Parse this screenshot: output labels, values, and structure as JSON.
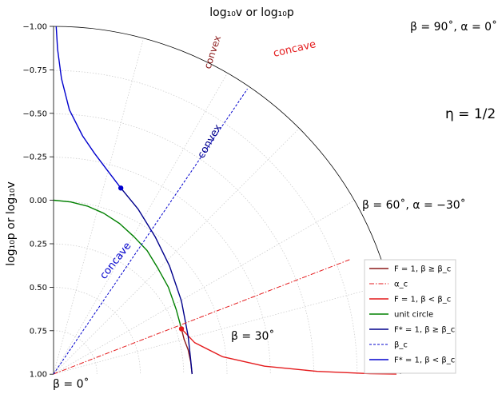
{
  "chart_data": {
    "type": "line",
    "title": "log₁₀v  or  log₁₀p",
    "ylabel": "log₁₀p  or  log₁₀v",
    "yticks": [
      "−1.00",
      "−0.75",
      "−0.50",
      "−0.25",
      "0.00",
      "0.25",
      "0.50",
      "0.75",
      "1.00"
    ],
    "ylim": [
      -1.0,
      1.0
    ],
    "eta_label": "η = 1/2",
    "angle_labels": [
      {
        "beta_deg": 0,
        "text": "β = 0˚"
      },
      {
        "beta_deg": 30,
        "text": "β = 30˚"
      },
      {
        "beta_deg": 60,
        "text": "β = 60˚, α = −30˚"
      },
      {
        "beta_deg": 90,
        "text": "β = 90˚, α = 0˚"
      }
    ],
    "curve_labels": [
      {
        "text": "convex",
        "color": "#8b1a1a"
      },
      {
        "text": "concave",
        "color": "#e41a1c"
      },
      {
        "text": "convex",
        "color": "#00008b"
      },
      {
        "text": "concave",
        "color": "#0000cd"
      }
    ],
    "legend": [
      {
        "label": "F = 1,  β ≥ β_c",
        "color": "#8b1a1a",
        "style": "solid"
      },
      {
        "label": "α_c",
        "color": "#e41a1c",
        "style": "dashdot"
      },
      {
        "label": "F = 1,  β < β_c",
        "color": "#e41a1c",
        "style": "solid"
      },
      {
        "label": "unit circle",
        "color": "#008000",
        "style": "solid"
      },
      {
        "label": "F* = 1,  β ≥ β_c",
        "color": "#00008b",
        "style": "solid"
      },
      {
        "label": "β_c",
        "color": "#0000cd",
        "style": "dashed"
      },
      {
        "label": "F* = 1,  β < β_c",
        "color": "#0000cd",
        "style": "solid"
      }
    ],
    "series": [
      {
        "key": "unit_circle",
        "color": "#008000",
        "points": [
          [
            0,
            0
          ],
          [
            0.13,
            0.01
          ],
          [
            0.26,
            0.035
          ],
          [
            0.38,
            0.075
          ],
          [
            0.5,
            0.134
          ],
          [
            0.61,
            0.21
          ],
          [
            0.71,
            0.29
          ],
          [
            0.79,
            0.39
          ],
          [
            0.87,
            0.5
          ],
          [
            0.93,
            0.63
          ],
          [
            0.97,
            0.74
          ]
        ]
      },
      {
        "key": "F1_beta_ge",
        "color": "#8b1a1a",
        "points": [
          [
            0.97,
            0.74
          ],
          [
            0.99,
            0.8
          ],
          [
            1.02,
            0.86
          ],
          [
            1.04,
            0.93
          ],
          [
            1.05,
            1.0
          ]
        ]
      },
      {
        "key": "F1_beta_lt",
        "color": "#e41a1c",
        "points": [
          [
            0.97,
            0.74
          ],
          [
            1.07,
            0.82
          ],
          [
            1.28,
            0.9
          ],
          [
            1.6,
            0.955
          ],
          [
            2.0,
            0.985
          ],
          [
            2.4,
            0.998
          ],
          [
            2.6,
            1.0
          ]
        ]
      },
      {
        "key": "Fstar1_beta_ge",
        "color": "#00008b",
        "points": [
          [
            0.51,
            -0.07
          ],
          [
            0.64,
            0.05
          ],
          [
            0.77,
            0.21
          ],
          [
            0.88,
            0.38
          ],
          [
            0.97,
            0.58
          ],
          [
            1.02,
            0.78
          ],
          [
            1.04,
            0.92
          ],
          [
            1.05,
            1.0
          ]
        ]
      },
      {
        "key": "Fstar1_beta_lt",
        "color": "#0000cd",
        "points": [
          [
            0.02,
            -1.0
          ],
          [
            0.03,
            -0.87
          ],
          [
            0.06,
            -0.7
          ],
          [
            0.12,
            -0.52
          ],
          [
            0.22,
            -0.37
          ],
          [
            0.31,
            -0.27
          ],
          [
            0.4,
            -0.18
          ],
          [
            0.51,
            -0.07
          ]
        ]
      },
      {
        "key": "alpha_c",
        "color": "#e41a1c",
        "style": "dashdot",
        "points": [
          [
            0,
            1.0
          ],
          [
            2.25,
            0.34
          ]
        ]
      },
      {
        "key": "beta_c",
        "color": "#0000cd",
        "style": "dashed",
        "points": [
          [
            0,
            1.0
          ],
          [
            1.47,
            -0.64
          ]
        ]
      }
    ],
    "markers": [
      {
        "x": 0.97,
        "y": 0.74,
        "color": "#e41a1c"
      },
      {
        "x": 0.51,
        "y": -0.07,
        "color": "#0000cd"
      }
    ],
    "grid": true
  }
}
